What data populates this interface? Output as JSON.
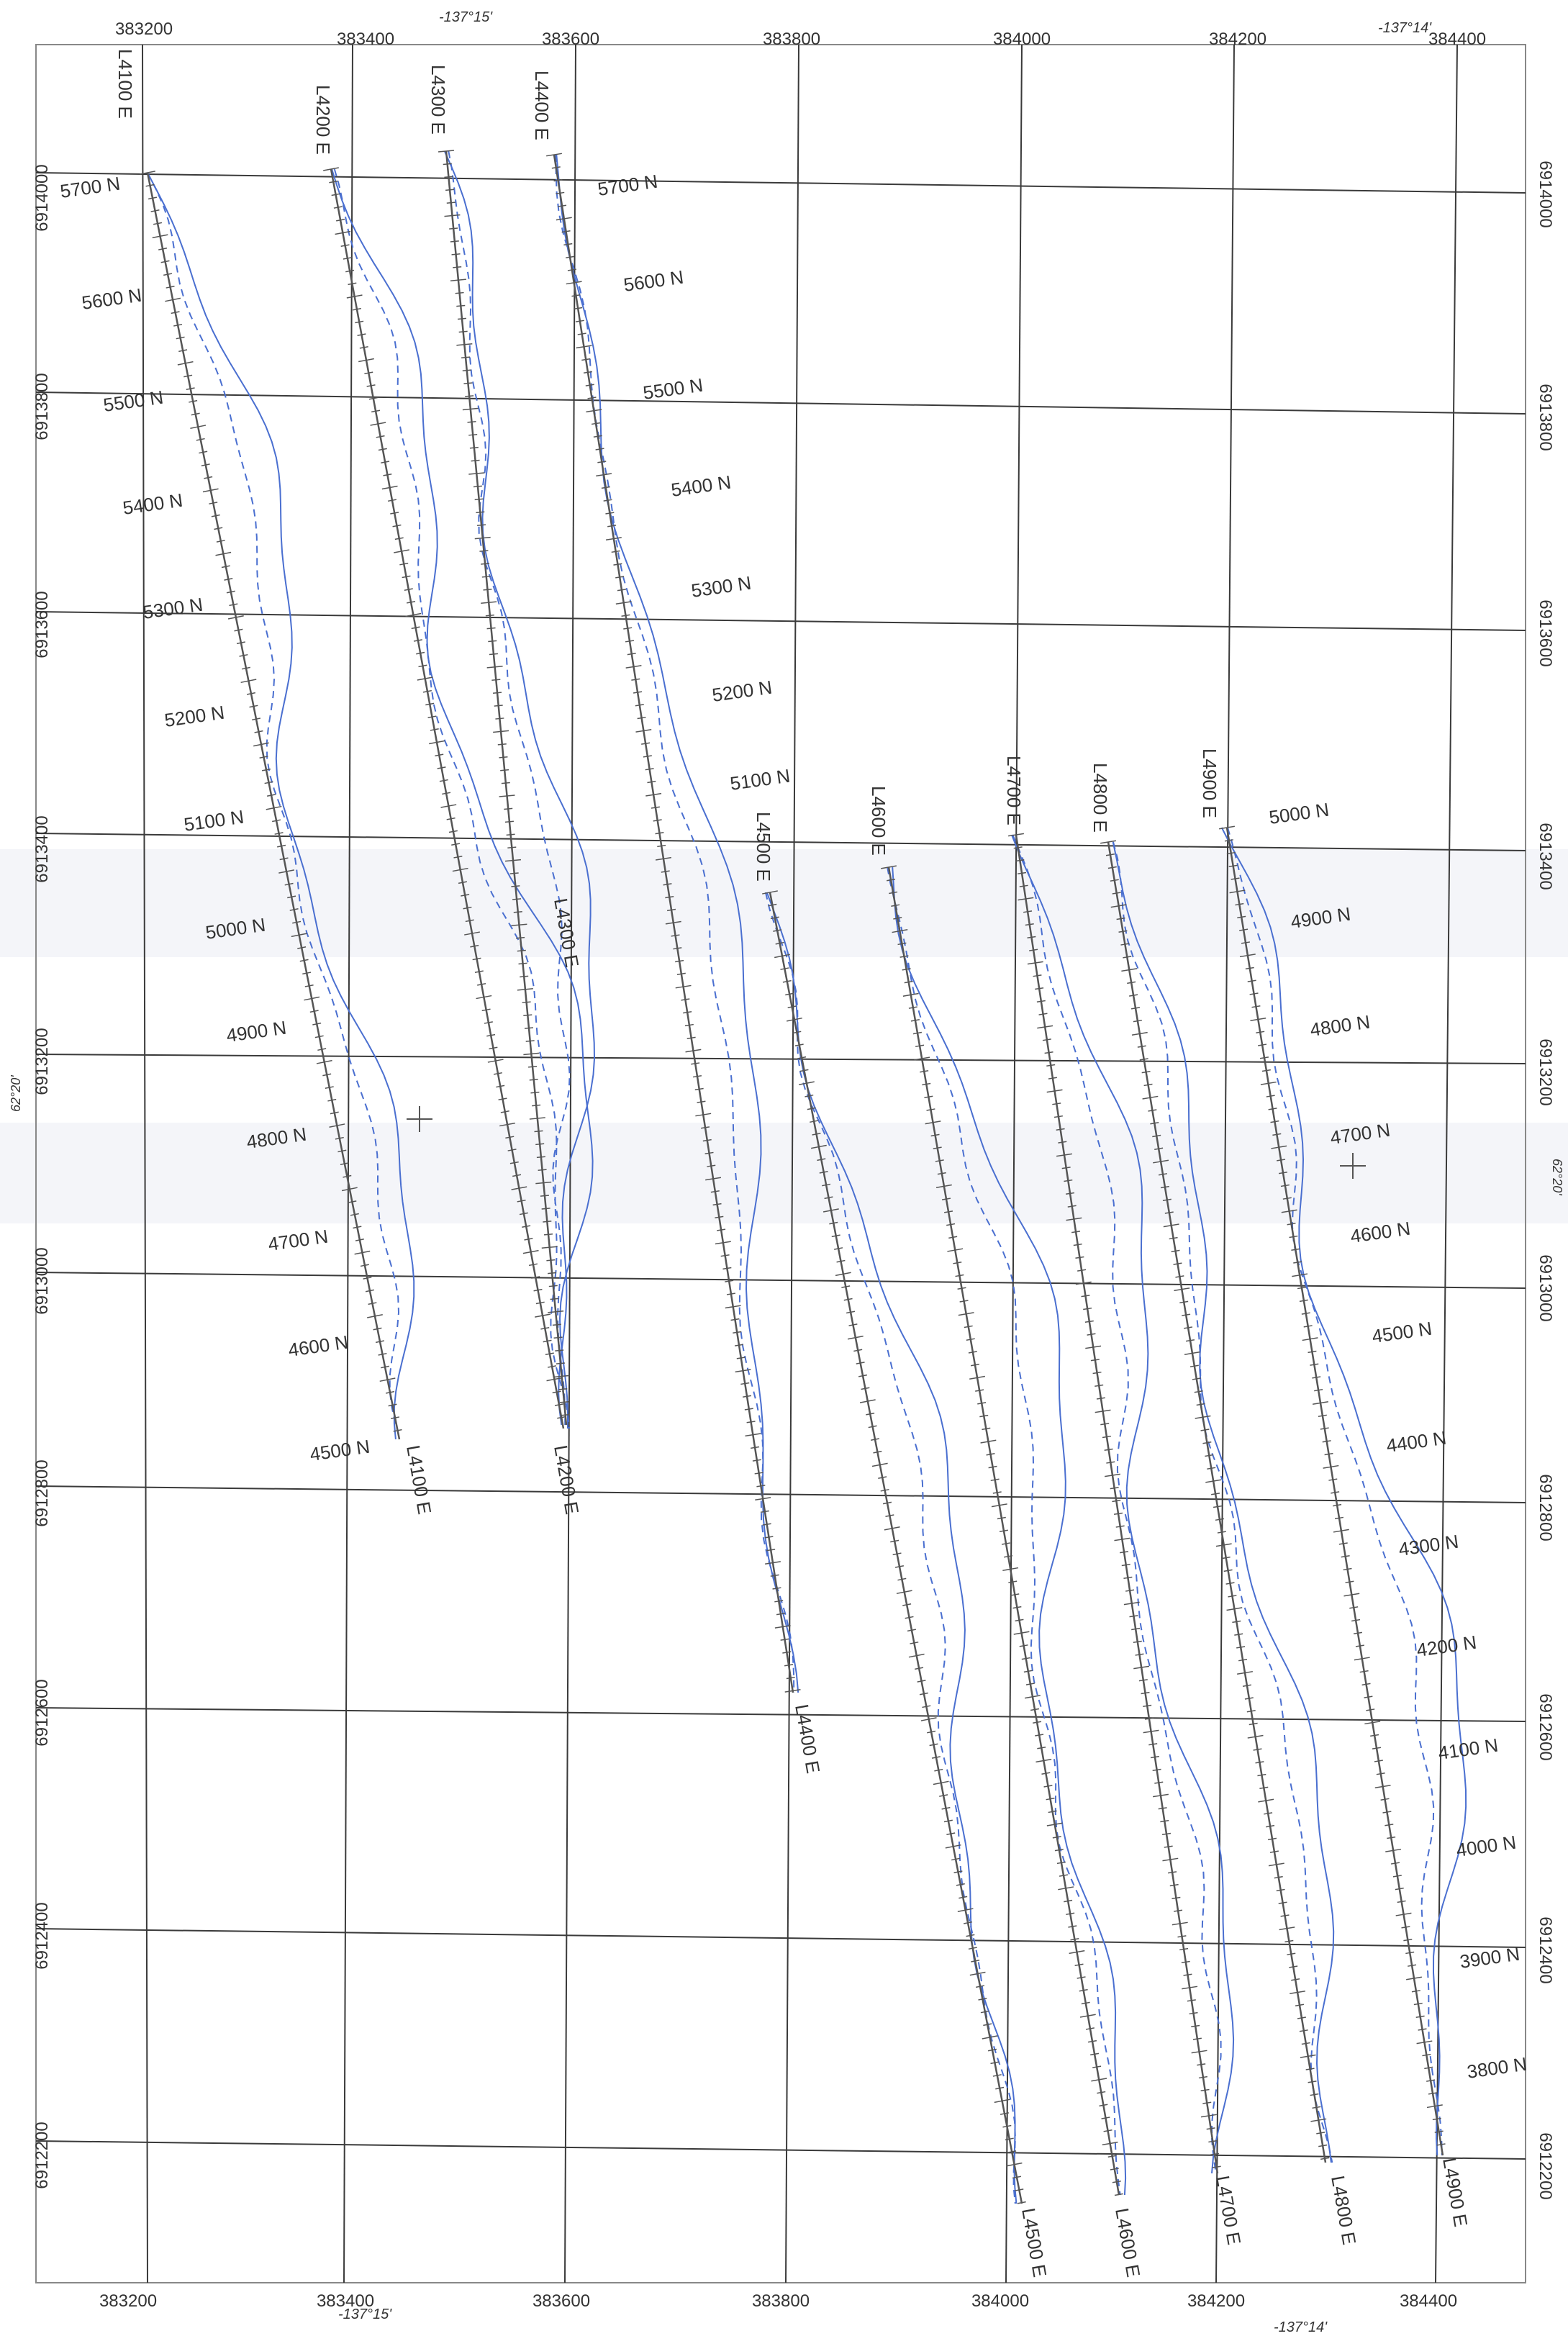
{
  "map": {
    "lon_labels_top": [
      "-137°15'",
      "-137°14'"
    ],
    "lon_labels_bottom": [
      "-137°15'",
      "-137°14'"
    ],
    "lat_label": "62°20'",
    "easting_ticks": [
      "383200",
      "383400",
      "383600",
      "383800",
      "384000",
      "384200",
      "384400"
    ],
    "northing_ticks": [
      "6914000",
      "6913800",
      "6913600",
      "6913400",
      "6913200",
      "6913000",
      "6912800",
      "6912600",
      "6912400",
      "6912200"
    ],
    "colors": {
      "grid": "#3a3a3a",
      "survey_line": "#555555",
      "profile": "#4a6fd0",
      "band": "#dfe3ef"
    },
    "survey_lines": [
      {
        "id": "L4100",
        "label": "L4100 E"
      },
      {
        "id": "L4200",
        "label": "L4200 E"
      },
      {
        "id": "L4300",
        "label": "L4300 E"
      },
      {
        "id": "L4400",
        "label": "L4400 E"
      },
      {
        "id": "L4500",
        "label": "L4500 E"
      },
      {
        "id": "L4600",
        "label": "L4600 E"
      },
      {
        "id": "L4700",
        "label": "L4700 E"
      },
      {
        "id": "L4800",
        "label": "L4800 E"
      },
      {
        "id": "L4900",
        "label": "L4900 E"
      }
    ],
    "station_labels_west": [
      "5700 N",
      "5600 N",
      "5500 N",
      "5400 N",
      "5300 N",
      "5200 N",
      "5100 N",
      "5000 N",
      "4900 N",
      "4800 N",
      "4700 N",
      "4600 N",
      "4500 N"
    ],
    "station_labels_mid": [
      "5700 N",
      "5600 N",
      "5500 N",
      "5400 N",
      "5300 N",
      "5200 N",
      "5100 N"
    ],
    "station_labels_east": [
      "5000 N",
      "4900 N",
      "4800 N",
      "4700 N",
      "4600 N",
      "4500 N",
      "4400 N",
      "4300 N",
      "4200 N",
      "4100 N",
      "4000 N",
      "3900 N",
      "3800 N"
    ]
  }
}
